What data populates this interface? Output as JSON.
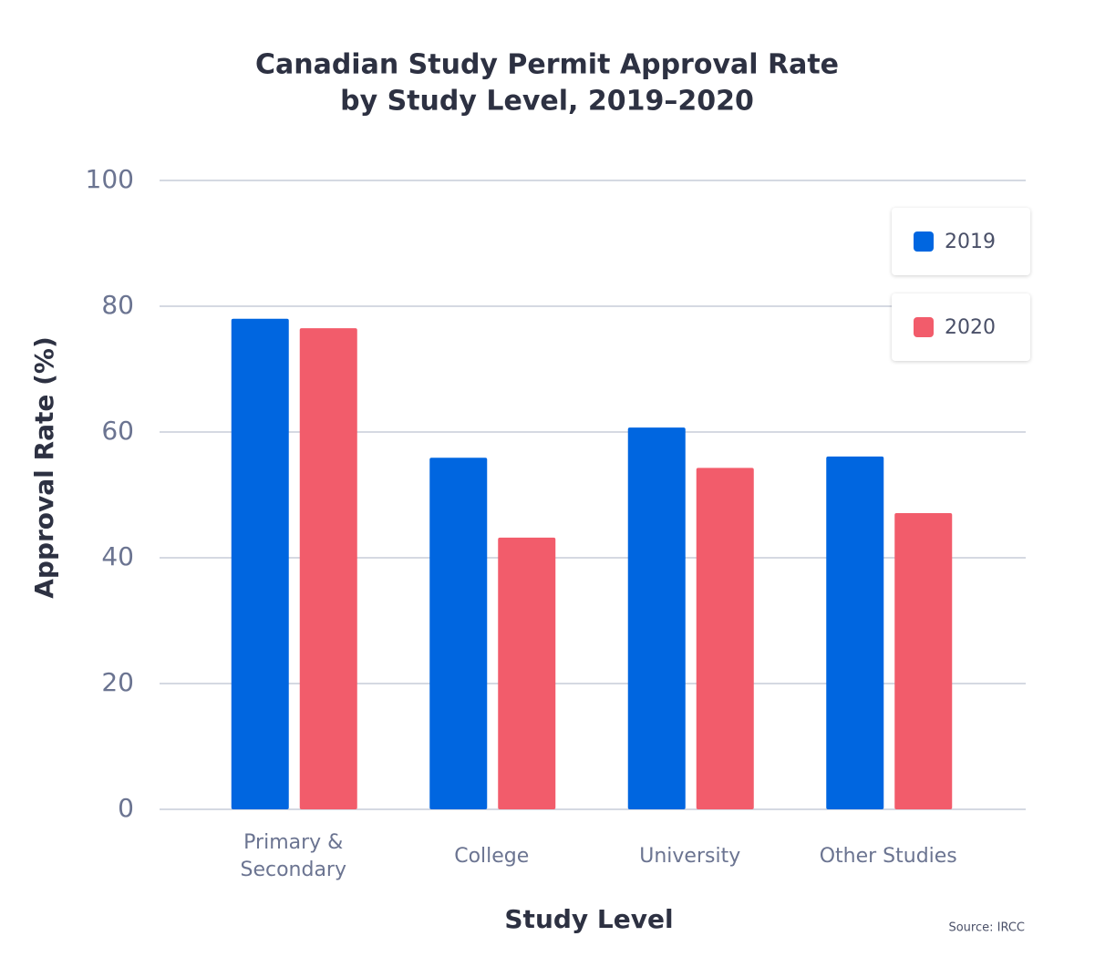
{
  "chart_data": {
    "type": "bar",
    "title": "Canadian Study Permit Approval Rate",
    "subtitle": "by Study Level, 2019–2020",
    "x_label": "Study Level",
    "y_label": "Approval Rate (%)",
    "source": "Source: IRCC",
    "categories": [
      "Primary & Secondary",
      "College",
      "University",
      "Other Studies"
    ],
    "series": [
      {
        "name": "2019",
        "color": "#0066e0",
        "values": [
          78.0,
          55.9,
          60.7,
          56.1
        ]
      },
      {
        "name": "2020",
        "color": "#f25c6b",
        "values": [
          76.5,
          43.2,
          54.3,
          47.1
        ]
      }
    ],
    "ylim": [
      0,
      100
    ],
    "yticks": [
      0,
      20,
      40,
      60,
      80,
      100
    ],
    "grid": true,
    "legend": "top-right"
  }
}
